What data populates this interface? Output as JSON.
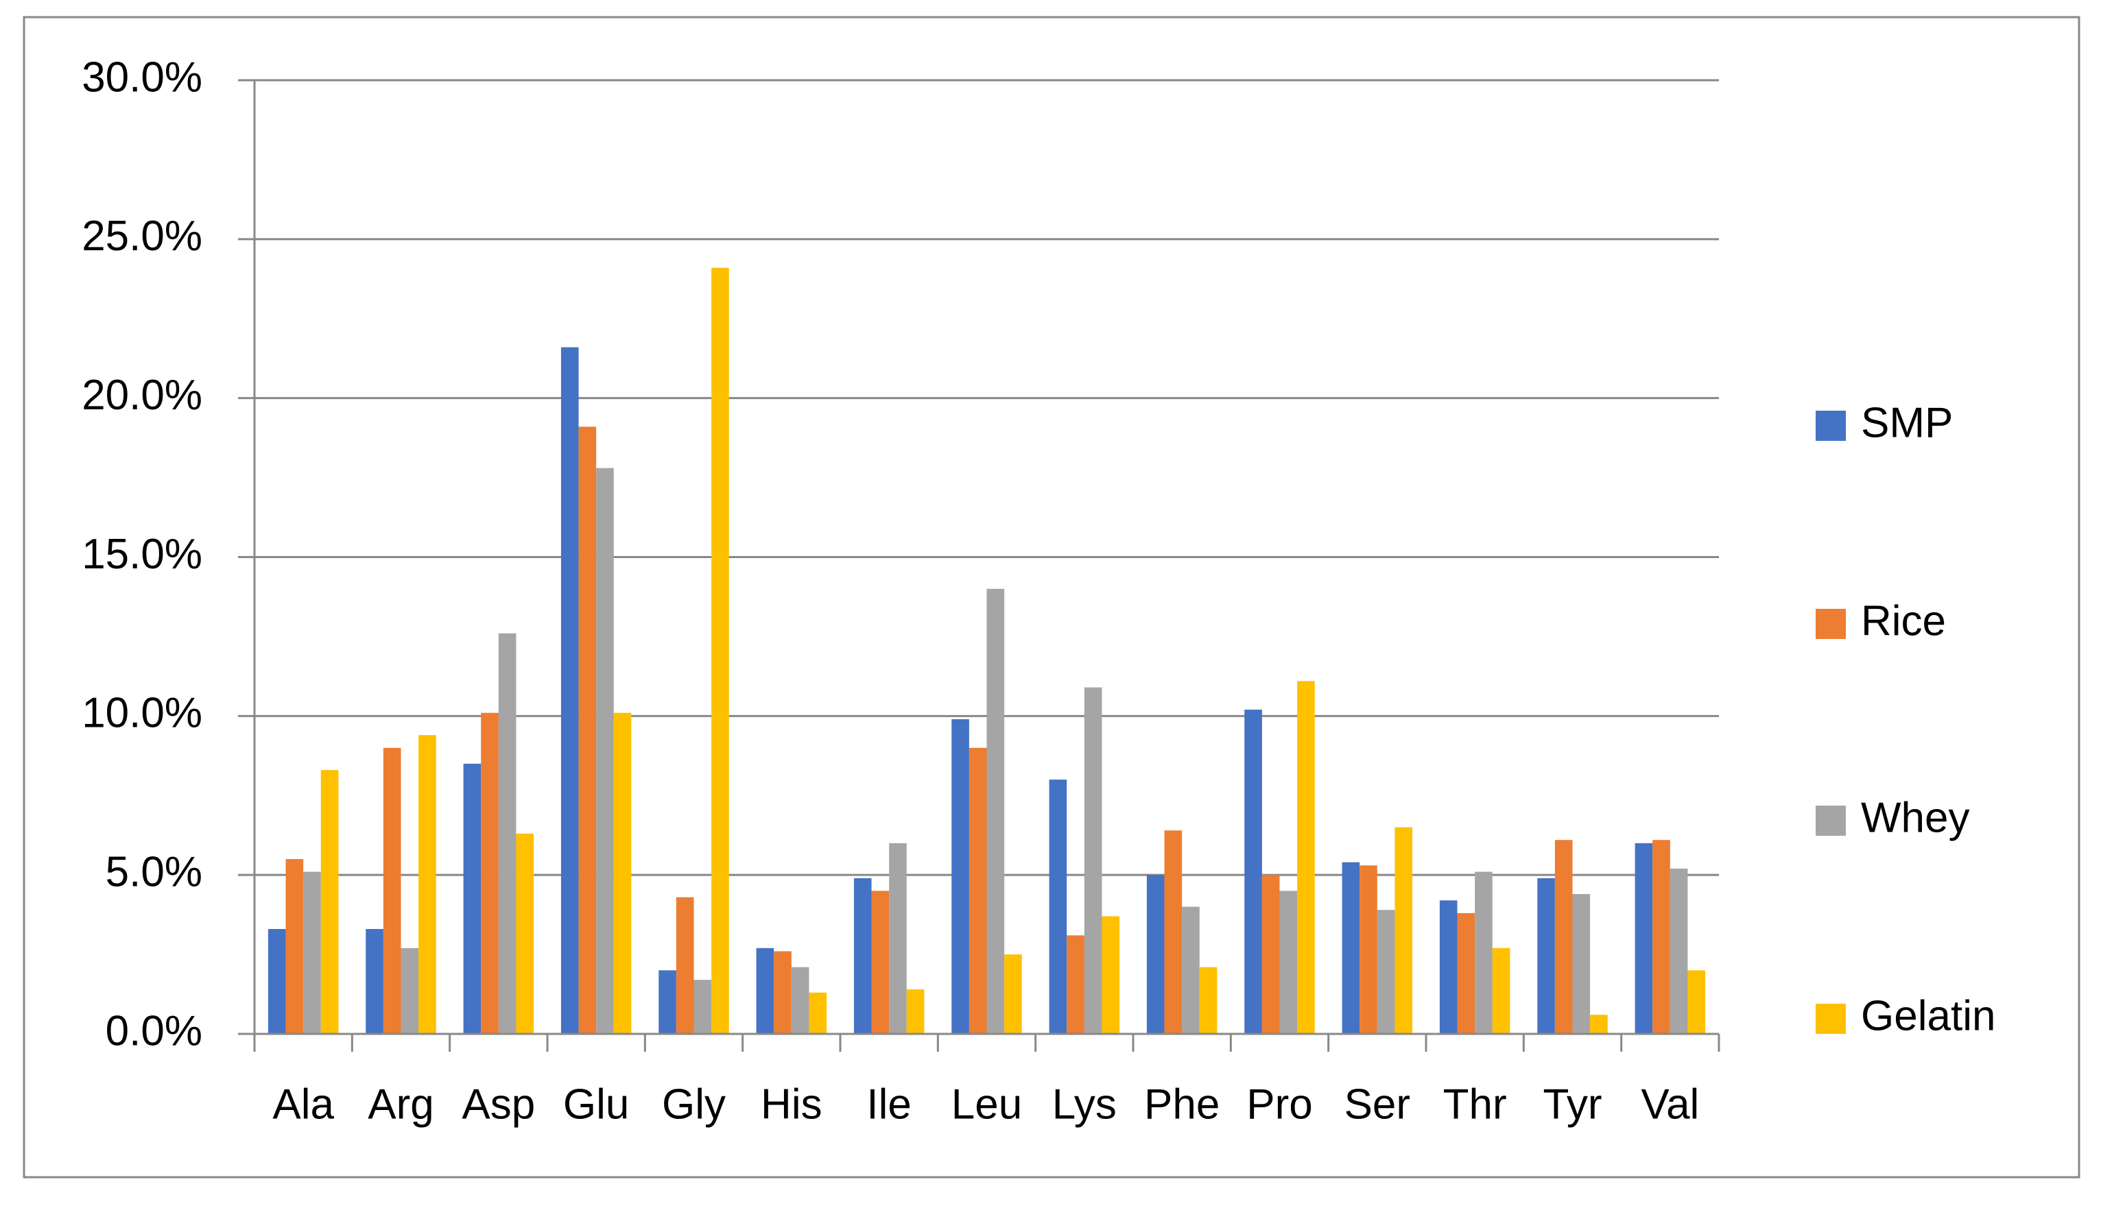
{
  "chart_data": {
    "type": "bar",
    "categories": [
      "Ala",
      "Arg",
      "Asp",
      "Glu",
      "Gly",
      "His",
      "Ile",
      "Leu",
      "Lys",
      "Phe",
      "Pro",
      "Ser",
      "Thr",
      "Tyr",
      "Val"
    ],
    "series": [
      {
        "name": "SMP",
        "color": "#4472c4",
        "values": [
          3.3,
          3.3,
          8.5,
          21.6,
          2.0,
          2.7,
          4.9,
          9.9,
          8.0,
          5.0,
          10.2,
          5.4,
          4.2,
          4.9,
          6.0
        ]
      },
      {
        "name": "Rice",
        "color": "#ed7d31",
        "values": [
          5.5,
          9.0,
          10.1,
          19.1,
          4.3,
          2.6,
          4.5,
          9.0,
          3.1,
          6.4,
          5.0,
          5.3,
          3.8,
          6.1,
          6.1
        ]
      },
      {
        "name": "Whey",
        "color": "#a5a5a5",
        "values": [
          5.1,
          2.7,
          12.6,
          17.8,
          1.7,
          2.1,
          6.0,
          14.0,
          10.9,
          4.0,
          4.5,
          3.9,
          5.1,
          4.4,
          5.2
        ]
      },
      {
        "name": "Gelatin",
        "color": "#ffc000",
        "values": [
          8.3,
          9.4,
          6.3,
          10.1,
          24.1,
          1.3,
          1.4,
          2.5,
          3.7,
          2.1,
          11.1,
          6.5,
          2.7,
          0.6,
          2.0
        ]
      }
    ],
    "ylim": [
      0,
      30
    ],
    "yticks": [
      {
        "value": 0,
        "label": "0.0%"
      },
      {
        "value": 5,
        "label": "5.0%"
      },
      {
        "value": 10,
        "label": "10.0%"
      },
      {
        "value": 15,
        "label": "15.0%"
      },
      {
        "value": 20,
        "label": "20.0%"
      },
      {
        "value": 25,
        "label": "25.0%"
      },
      {
        "value": 30,
        "label": "30.0%"
      }
    ],
    "grid": true,
    "legend": "right"
  }
}
